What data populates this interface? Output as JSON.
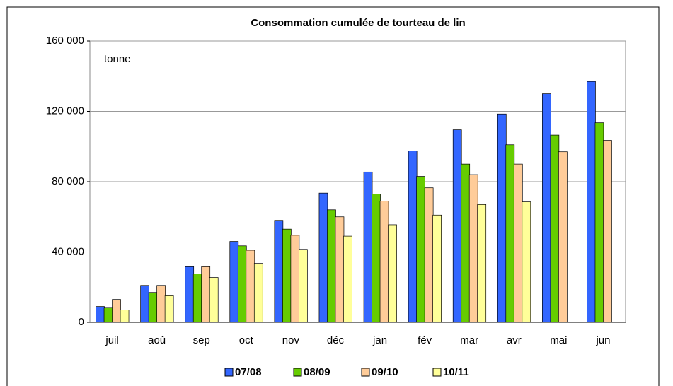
{
  "chart_data": {
    "type": "bar",
    "title": "Consommation cumulée de tourteau de lin",
    "annotation": "tonne",
    "categories": [
      "juil",
      "aoû",
      "sep",
      "oct",
      "nov",
      "déc",
      "jan",
      "fév",
      "mar",
      "avr",
      "mai",
      "jun"
    ],
    "series": [
      {
        "name": "07/08",
        "color": "#3366ff",
        "values": [
          9000,
          21000,
          32000,
          46000,
          58000,
          73500,
          85500,
          97500,
          109500,
          118500,
          130000,
          137000
        ]
      },
      {
        "name": "08/09",
        "color": "#66cc00",
        "values": [
          8500,
          17000,
          27500,
          43500,
          53000,
          64000,
          73000,
          83000,
          90000,
          101000,
          106500,
          113500
        ]
      },
      {
        "name": "09/10",
        "color": "#ffcc99",
        "values": [
          13000,
          21000,
          32000,
          41000,
          49500,
          60000,
          69000,
          76500,
          84000,
          90000,
          97000,
          103500
        ]
      },
      {
        "name": "10/11",
        "color": "#ffff99",
        "values": [
          7000,
          15500,
          25500,
          33500,
          41500,
          49000,
          55500,
          61000,
          67000,
          68500,
          null,
          null
        ]
      }
    ],
    "ylim": [
      0,
      160000
    ],
    "yticks": [
      {
        "value": 0,
        "label": "0"
      },
      {
        "value": 40000,
        "label": "40 000"
      },
      {
        "value": 80000,
        "label": "80 000"
      },
      {
        "value": 120000,
        "label": "120 000"
      },
      {
        "value": 160000,
        "label": "160 000"
      }
    ],
    "grid": true
  }
}
